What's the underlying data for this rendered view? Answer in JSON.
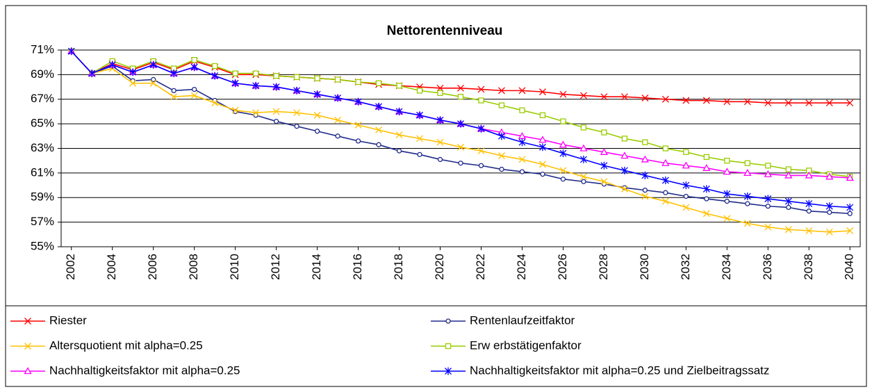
{
  "chart_data": {
    "type": "line",
    "title": "Nettorentenniveau",
    "x": [
      2002,
      2003,
      2004,
      2005,
      2006,
      2007,
      2008,
      2009,
      2010,
      2011,
      2012,
      2013,
      2014,
      2015,
      2016,
      2017,
      2018,
      2019,
      2020,
      2021,
      2022,
      2023,
      2024,
      2025,
      2026,
      2027,
      2028,
      2029,
      2030,
      2031,
      2032,
      2033,
      2034,
      2035,
      2036,
      2037,
      2038,
      2039,
      2040
    ],
    "xlim": [
      2001.5,
      2040.5
    ],
    "xticks": [
      2002,
      2004,
      2006,
      2008,
      2010,
      2012,
      2014,
      2016,
      2018,
      2020,
      2022,
      2024,
      2026,
      2028,
      2030,
      2032,
      2034,
      2036,
      2038,
      2040
    ],
    "ylim": [
      55,
      71
    ],
    "yticks": [
      {
        "value": 55,
        "label": "55%"
      },
      {
        "value": 57,
        "label": "57%"
      },
      {
        "value": 59,
        "label": "59%"
      },
      {
        "value": 61,
        "label": "61%"
      },
      {
        "value": 63,
        "label": "63%"
      },
      {
        "value": 65,
        "label": "65%"
      },
      {
        "value": 67,
        "label": "67%"
      },
      {
        "value": 69,
        "label": "69%"
      },
      {
        "value": 71,
        "label": "71%"
      }
    ],
    "grid": true,
    "legend": "bottom",
    "series": [
      {
        "name": "Riester",
        "color": "#ff0000",
        "marker": "x",
        "values": [
          70.9,
          69.1,
          69.9,
          69.4,
          70.0,
          69.4,
          70.1,
          69.6,
          69.0,
          69.0,
          68.9,
          68.8,
          68.7,
          68.6,
          68.4,
          68.2,
          68.1,
          68.0,
          67.9,
          67.9,
          67.8,
          67.7,
          67.7,
          67.6,
          67.4,
          67.3,
          67.2,
          67.2,
          67.1,
          67.0,
          66.9,
          66.9,
          66.8,
          66.8,
          66.7,
          66.7,
          66.7,
          66.7,
          66.7
        ]
      },
      {
        "name": "Rentenlaufzeitfaktor",
        "color": "#1f2a8a",
        "marker": "circle",
        "values": [
          70.9,
          69.1,
          69.7,
          68.5,
          68.6,
          67.7,
          67.8,
          66.9,
          66.0,
          65.7,
          65.2,
          64.8,
          64.4,
          64.0,
          63.6,
          63.3,
          62.8,
          62.5,
          62.1,
          61.8,
          61.6,
          61.3,
          61.1,
          60.9,
          60.5,
          60.3,
          60.1,
          59.8,
          59.6,
          59.4,
          59.1,
          58.9,
          58.7,
          58.5,
          58.3,
          58.2,
          57.9,
          57.8,
          57.7
        ]
      },
      {
        "name": "Altersquotient mit alpha=0.25",
        "color": "#ffc000",
        "marker": "x",
        "values": [
          70.9,
          69.1,
          69.5,
          68.3,
          68.3,
          67.2,
          67.3,
          66.7,
          66.1,
          65.9,
          66.0,
          65.9,
          65.7,
          65.3,
          64.9,
          64.5,
          64.1,
          63.8,
          63.5,
          63.1,
          62.8,
          62.4,
          62.1,
          61.7,
          61.2,
          60.7,
          60.3,
          59.7,
          59.1,
          58.7,
          58.2,
          57.7,
          57.3,
          56.9,
          56.6,
          56.4,
          56.3,
          56.2,
          56.3
        ]
      },
      {
        "name": "Erw erbstätigenfaktor",
        "color": "#99cc00",
        "marker": "square",
        "values": [
          70.9,
          69.1,
          70.1,
          69.5,
          70.1,
          69.5,
          70.2,
          69.7,
          69.1,
          69.1,
          68.9,
          68.8,
          68.7,
          68.6,
          68.4,
          68.3,
          68.1,
          67.7,
          67.5,
          67.2,
          66.9,
          66.5,
          66.1,
          65.7,
          65.2,
          64.7,
          64.3,
          63.8,
          63.5,
          63.0,
          62.7,
          62.3,
          62.0,
          61.8,
          61.6,
          61.3,
          61.2,
          60.9,
          60.7
        ]
      },
      {
        "name": "Nachhaltigkeitsfaktor mit alpha=0.25",
        "color": "#ff00ff",
        "marker": "triangle",
        "values": [
          70.9,
          69.1,
          69.8,
          69.2,
          69.8,
          69.1,
          69.6,
          68.9,
          68.3,
          68.1,
          68.0,
          67.7,
          67.4,
          67.1,
          66.8,
          66.4,
          66.0,
          65.7,
          65.3,
          65.0,
          64.6,
          64.3,
          64.0,
          63.7,
          63.3,
          63.0,
          62.7,
          62.4,
          62.1,
          61.8,
          61.6,
          61.4,
          61.1,
          61.0,
          60.9,
          60.8,
          60.8,
          60.7,
          60.6
        ]
      },
      {
        "name": "Nachhaltigkeitsfaktor mit alpha=0.25 und Zielbeitragssatz",
        "color": "#0000ff",
        "marker": "star",
        "values": [
          70.9,
          69.1,
          69.8,
          69.2,
          69.8,
          69.1,
          69.6,
          68.9,
          68.3,
          68.1,
          68.0,
          67.7,
          67.4,
          67.1,
          66.8,
          66.4,
          66.0,
          65.7,
          65.3,
          65.0,
          64.6,
          64.0,
          63.5,
          63.1,
          62.6,
          62.1,
          61.6,
          61.2,
          60.8,
          60.4,
          60.0,
          59.7,
          59.3,
          59.1,
          58.9,
          58.7,
          58.5,
          58.3,
          58.2
        ]
      }
    ]
  }
}
